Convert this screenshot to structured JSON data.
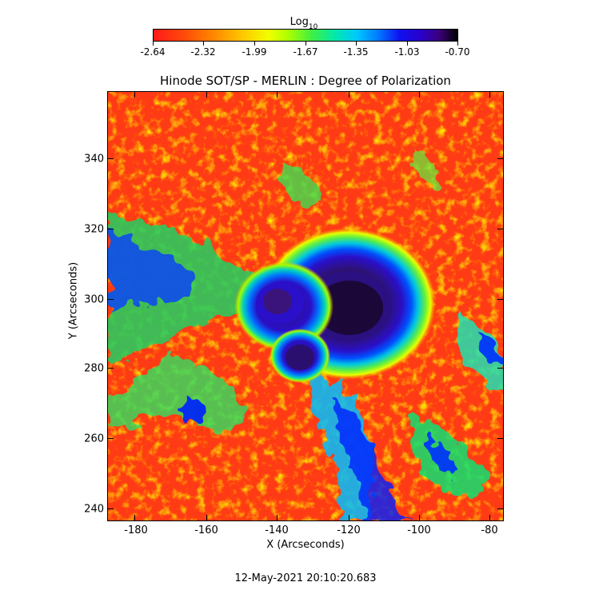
{
  "colorbar": {
    "title": "Log",
    "title_sub": "10",
    "tick_labels": [
      "-2.64",
      "-2.32",
      "-1.99",
      "-1.67",
      "-1.35",
      "-1.03",
      "-0.70"
    ]
  },
  "plot": {
    "title": "Hinode SOT/SP - MERLIN : Degree of Polarization",
    "xlabel": "X (Arcseconds)",
    "ylabel": "Y (Arcseconds)",
    "x_ticks": [
      "-180",
      "-160",
      "-140",
      "-120",
      "-100",
      "-80"
    ],
    "y_ticks": [
      "340",
      "320",
      "300",
      "280",
      "260",
      "240"
    ]
  },
  "timestamp": "12-May-2021 20:10:20.683",
  "colors": {
    "background_field": "#ff2a10",
    "umbra": "#2a0a5a",
    "penumbra": "#1010e0"
  }
}
